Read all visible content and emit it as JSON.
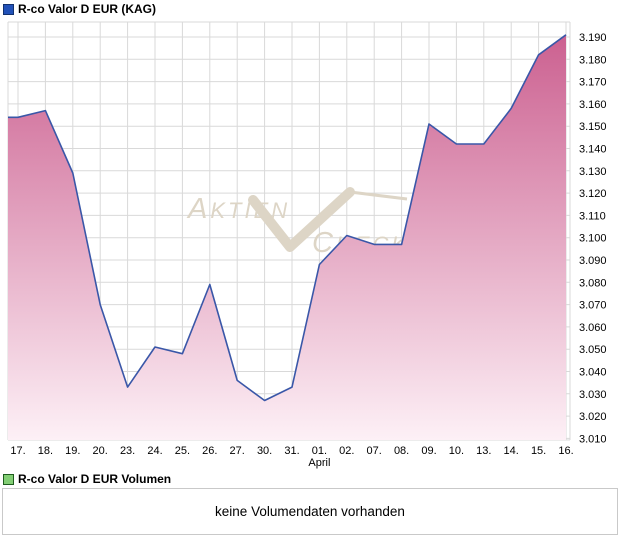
{
  "header": {
    "title": "R-co Valor D EUR (KAG)"
  },
  "chart_data": {
    "type": "area",
    "title": "R-co Valor D EUR (KAG)",
    "x_labels": [
      "17.",
      "18.",
      "19.",
      "20.",
      "23.",
      "24.",
      "25.",
      "26.",
      "27.",
      "30.",
      "31.",
      "01.",
      "02.",
      "07.",
      "08.",
      "09.",
      "10.",
      "13.",
      "14.",
      "15.",
      "16."
    ],
    "month_label": "April",
    "month_label_index": 11,
    "values": [
      3.154,
      3.157,
      3.129,
      3.07,
      3.033,
      3.051,
      3.048,
      3.079,
      3.036,
      3.027,
      3.033,
      3.088,
      3.101,
      3.097,
      3.097,
      3.151,
      3.142,
      3.142,
      3.158,
      3.182,
      3.191
    ],
    "y_ticks": [
      "3.190",
      "3.180",
      "3.170",
      "3.160",
      "3.150",
      "3.140",
      "3.130",
      "3.120",
      "3.110",
      "3.100",
      "3.090",
      "3.080",
      "3.070",
      "3.060",
      "3.050",
      "3.040",
      "3.030",
      "3.020",
      "3.010"
    ],
    "y_tick_values": [
      3.19,
      3.18,
      3.17,
      3.16,
      3.15,
      3.14,
      3.13,
      3.12,
      3.11,
      3.1,
      3.09,
      3.08,
      3.07,
      3.06,
      3.05,
      3.04,
      3.03,
      3.02,
      3.01
    ],
    "ylim": [
      3.0093,
      3.1967
    ],
    "grid": true,
    "number_format_note": "German formatting: 3.190 means 3190 EUR",
    "colors": {
      "line": "#3a57a8",
      "fill_top": "#ca5c8d",
      "fill_bottom": "#fdf0f6",
      "grid": "#d9d9d9",
      "axis_text": "#000000"
    }
  },
  "watermark": {
    "part1": "Aktien",
    "part2": "Check",
    "icon": "check-mark",
    "color": "#ddd5c6"
  },
  "volume": {
    "legend": "R-co Valor D EUR Volumen",
    "message": "keine Volumendaten vorhanden"
  },
  "legend_icons": {
    "price_color": "#2151b8",
    "volume_color": "#82ce74"
  }
}
